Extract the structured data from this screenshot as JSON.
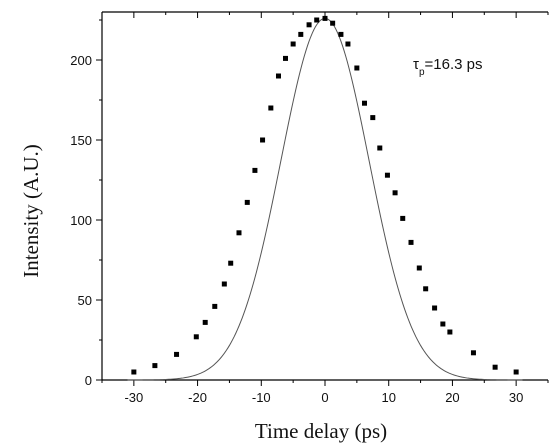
{
  "chart_data": {
    "type": "scatter",
    "title": "",
    "xlabel": "Time delay  (ps)",
    "ylabel": "Intensity (A.U.)",
    "xlim": [
      -35,
      35
    ],
    "ylim": [
      0,
      230
    ],
    "x_ticks": [
      -30,
      -20,
      -10,
      0,
      10,
      20,
      30
    ],
    "y_ticks": [
      0,
      50,
      100,
      150,
      200
    ],
    "grid": false,
    "annotation": {
      "symbol": "τ",
      "subscript": "p",
      "text": "=16.3 ps"
    },
    "series": [
      {
        "kind": "scatter",
        "marker": "square",
        "color": "#000000",
        "points": [
          [
            -30,
            5
          ],
          [
            -26.7,
            9
          ],
          [
            -23.3,
            16
          ],
          [
            -20.2,
            27
          ],
          [
            -18.8,
            36
          ],
          [
            -17.3,
            46
          ],
          [
            -15.8,
            60
          ],
          [
            -14.8,
            73
          ],
          [
            -13.5,
            92
          ],
          [
            -12.2,
            111
          ],
          [
            -11,
            131
          ],
          [
            -9.8,
            150
          ],
          [
            -8.5,
            170
          ],
          [
            -7.3,
            190
          ],
          [
            -6.2,
            201
          ],
          [
            -5,
            210
          ],
          [
            -3.8,
            216
          ],
          [
            -2.5,
            222
          ],
          [
            -1.3,
            225
          ],
          [
            0,
            226
          ],
          [
            1.2,
            223
          ],
          [
            2.5,
            216
          ],
          [
            3.6,
            210
          ],
          [
            5,
            195
          ],
          [
            6.2,
            173
          ],
          [
            7.5,
            164
          ],
          [
            8.6,
            145
          ],
          [
            9.8,
            128
          ],
          [
            11,
            117
          ],
          [
            12.2,
            101
          ],
          [
            13.5,
            86
          ],
          [
            14.8,
            70
          ],
          [
            15.8,
            57
          ],
          [
            17.2,
            45
          ],
          [
            18.5,
            35
          ],
          [
            19.6,
            30
          ],
          [
            23.3,
            17
          ],
          [
            26.7,
            8
          ],
          [
            30,
            5
          ]
        ]
      },
      {
        "kind": "fit",
        "shape": "gaussian",
        "color": "#555555",
        "amplitude": 226,
        "center": 0,
        "fwhm": 16.3,
        "xrange": [
          -31,
          31
        ]
      }
    ]
  }
}
